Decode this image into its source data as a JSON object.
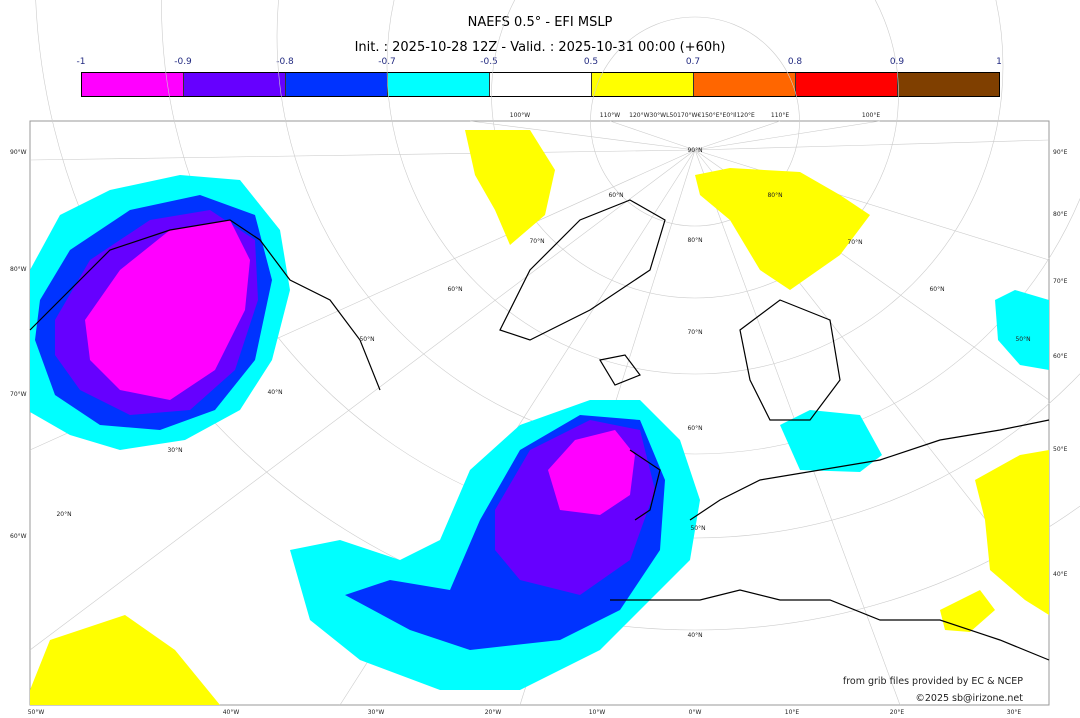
{
  "title": "NAEFS 0.5° - EFI MSLP",
  "subtitle": "Init. : 2025-10-28 12Z - Valid. : 2025-10-31 00:00 (+60h)",
  "colorbar": {
    "levels": [
      "-1",
      "-0.9",
      "-0.8",
      "-0.7",
      "-0.5",
      "0.5",
      "0.7",
      "0.8",
      "0.9",
      "1"
    ],
    "colors": [
      "#ff00ff",
      "#6600ff",
      "#0033ff",
      "#00ffff",
      "#ffffff",
      "#ffff00",
      "#ff6600",
      "#ff0000",
      "#7f3f00"
    ]
  },
  "map": {
    "left_labels": [
      "90°W",
      "80°W",
      "70°W",
      "60°W"
    ],
    "right_labels": [
      "90°E",
      "80°E",
      "70°E",
      "60°E",
      "50°E",
      "40°E"
    ],
    "bottom_labels": [
      "50°W",
      "40°W",
      "30°W",
      "20°W",
      "10°W",
      "0°W",
      "10°E",
      "20°E",
      "30°E"
    ],
    "top_labels": [
      "100°W",
      "110°W",
      "120°W30°WL50170°W€150°E°E0°Il120°E",
      "110°E",
      "100°E"
    ],
    "lat_labels": [
      "90°N",
      "80°N",
      "70°N",
      "60°N",
      "50°N",
      "40°N",
      "70°N",
      "60°N",
      "50°N",
      "40°N",
      "30°N",
      "20°N",
      "80°N",
      "70°N",
      "60°N",
      "50°N",
      "60°N"
    ]
  },
  "credits": {
    "source": "from grib files provided by EC & NCEP",
    "copyright": "©2025 sb@irizone.net"
  }
}
